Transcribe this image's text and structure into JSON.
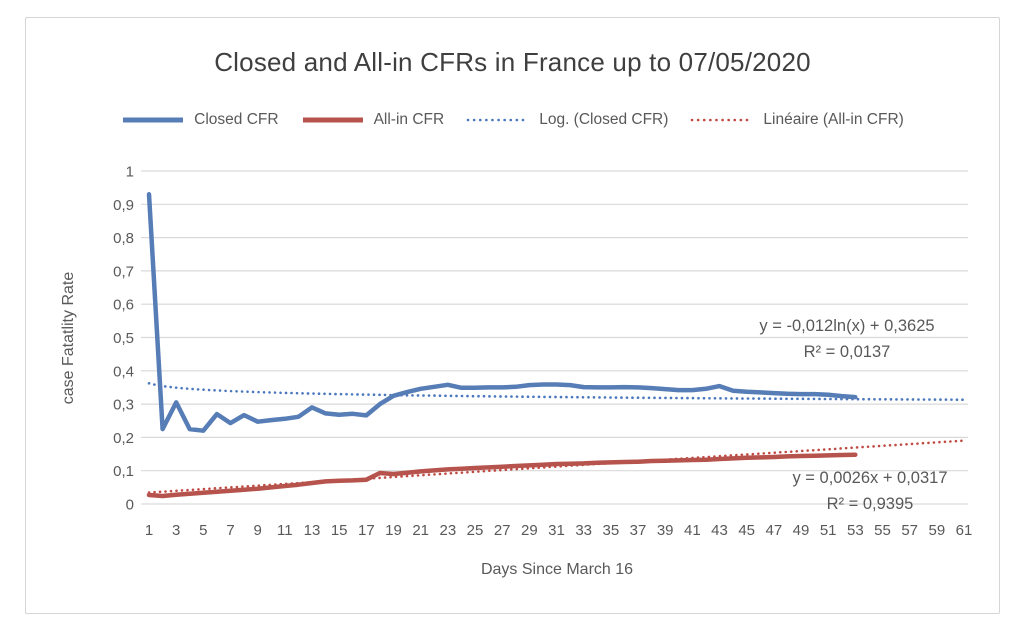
{
  "title": "Closed and All-in CFRs in France up to 07/05/2020",
  "colors": {
    "closed_cfr": "#567db6",
    "all_in_cfr": "#b5534c",
    "closed_trend": "#4a77be",
    "all_in_trend": "#c04a42",
    "grid": "#d9d9d9",
    "text": "#595959",
    "title_text": "#3f3f3f",
    "frame_border": "#d5d5d5"
  },
  "legend": {
    "items": [
      {
        "label": "Closed CFR",
        "style": "solid",
        "color": "#567db6"
      },
      {
        "label": "All-in CFR",
        "style": "solid",
        "color": "#b5534c"
      },
      {
        "label": "Log. (Closed CFR)",
        "style": "dotted",
        "color": "#4a77be"
      },
      {
        "label": "Linéaire (All-in CFR)",
        "style": "dotted",
        "color": "#c04a42"
      }
    ]
  },
  "annotations": {
    "log_eq": "y = -0,012ln(x) + 0,3625",
    "log_r2": "R² = 0,0137",
    "lin_eq": "y = 0,0026x + 0,0317",
    "lin_r2": "R² = 0,9395"
  },
  "chart_data": {
    "type": "line",
    "title": "Closed and All-in CFRs in France up to 07/05/2020",
    "xlabel": "Days Since March 16",
    "ylabel": "case Fatatlity Rate",
    "xlim": [
      1,
      61
    ],
    "ylim": [
      0,
      1
    ],
    "grid": true,
    "legend_position": "top",
    "x_ticks": [
      1,
      3,
      5,
      7,
      9,
      11,
      13,
      15,
      17,
      19,
      21,
      23,
      25,
      27,
      29,
      31,
      33,
      35,
      37,
      39,
      41,
      43,
      45,
      47,
      49,
      51,
      53,
      55,
      57,
      59,
      61
    ],
    "y_ticks": [
      "1",
      "0,9",
      "0,8",
      "0,7",
      "0,6",
      "0,5",
      "0,4",
      "0,3",
      "0,2",
      "0,1",
      "0"
    ],
    "x": [
      1,
      2,
      3,
      4,
      5,
      6,
      7,
      8,
      9,
      10,
      11,
      12,
      13,
      14,
      15,
      16,
      17,
      18,
      19,
      20,
      21,
      22,
      23,
      24,
      25,
      26,
      27,
      28,
      29,
      30,
      31,
      32,
      33,
      34,
      35,
      36,
      37,
      38,
      39,
      40,
      41,
      42,
      43,
      44,
      45,
      46,
      47,
      48,
      49,
      50,
      51,
      52,
      53
    ],
    "series": [
      {
        "name": "Closed CFR",
        "color": "#567db6",
        "values": [
          0.93,
          0.225,
          0.305,
          0.225,
          0.22,
          0.27,
          0.243,
          0.267,
          0.247,
          0.252,
          0.256,
          0.262,
          0.29,
          0.272,
          0.268,
          0.271,
          0.266,
          0.3,
          0.325,
          0.336,
          0.346,
          0.352,
          0.358,
          0.349,
          0.349,
          0.35,
          0.35,
          0.352,
          0.357,
          0.359,
          0.359,
          0.357,
          0.351,
          0.35,
          0.35,
          0.351,
          0.35,
          0.348,
          0.345,
          0.342,
          0.342,
          0.346,
          0.354,
          0.34,
          0.337,
          0.335,
          0.333,
          0.331,
          0.33,
          0.33,
          0.328,
          0.324,
          0.321
        ]
      },
      {
        "name": "All-in CFR",
        "color": "#b5534c",
        "values": [
          0.027,
          0.024,
          0.028,
          0.031,
          0.034,
          0.037,
          0.04,
          0.043,
          0.046,
          0.05,
          0.054,
          0.058,
          0.063,
          0.068,
          0.07,
          0.071,
          0.073,
          0.093,
          0.09,
          0.094,
          0.098,
          0.101,
          0.104,
          0.106,
          0.108,
          0.11,
          0.112,
          0.114,
          0.116,
          0.118,
          0.12,
          0.121,
          0.122,
          0.124,
          0.125,
          0.126,
          0.127,
          0.129,
          0.13,
          0.131,
          0.132,
          0.133,
          0.135,
          0.137,
          0.139,
          0.14,
          0.141,
          0.143,
          0.144,
          0.145,
          0.146,
          0.147,
          0.148
        ]
      }
    ],
    "trendlines": [
      {
        "name": "Log. (Closed CFR)",
        "kind": "log",
        "a": -0.012,
        "b": 0.3625,
        "equation": "y = -0,012ln(x) + 0,3625",
        "r2": "0,0137",
        "color": "#4a77be",
        "x_range": [
          1,
          61
        ]
      },
      {
        "name": "Linéaire (All-in CFR)",
        "kind": "linear",
        "m": 0.0026,
        "c": 0.0317,
        "equation": "y = 0,0026x + 0,0317",
        "r2": "0,9395",
        "color": "#c04a42",
        "x_range": [
          1,
          61
        ]
      }
    ]
  }
}
